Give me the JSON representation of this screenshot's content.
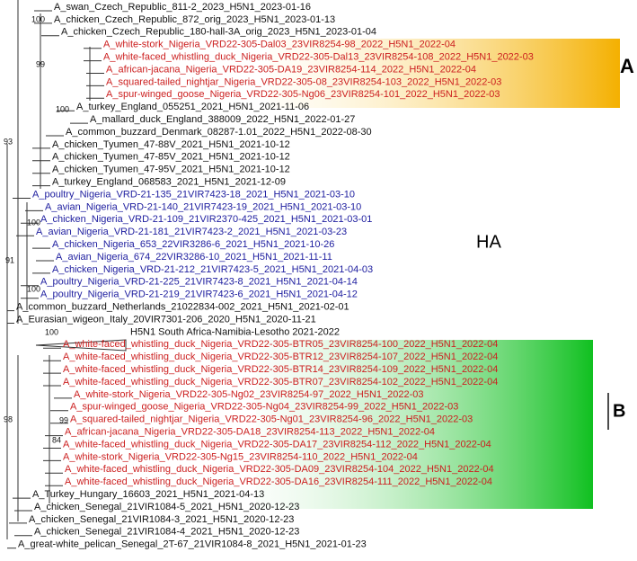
{
  "tree": {
    "leaves": [
      {
        "label": "A_swan_Czech_Republic_811-2_2023_H5N1_2023-01-16",
        "color": "#111111"
      },
      {
        "label": "A_chicken_Czech_Republic_872_orig_2023_H5N1_2023-01-13",
        "color": "#111111"
      },
      {
        "label": "A_chicken_Czech_Republic_180-hall-3A_orig_2023_H5N1_2023-01-04",
        "color": "#111111"
      },
      {
        "label": "A_white-stork_Nigeria_VRD22-305-Dal03_23VIR8254-98_2022_H5N1_2022-04",
        "color": "#cc2020"
      },
      {
        "label": "A_white-faced_whistling_duck_Nigeria_VRD22-305-Dal13_23VIR8254-108_2022_H5N1_2022-03",
        "color": "#cc2020"
      },
      {
        "label": "A_african-jacana_Nigeria_VRD22-305-DA19_23VIR8254-114_2022_H5N1_2022-04",
        "color": "#cc2020"
      },
      {
        "label": "A_squared-tailed_nightjar_Nigeria_VRD22-305-08_23VIR8254-103_2022_H5N1_2022-03",
        "color": "#cc2020"
      },
      {
        "label": "A_spur-winged_goose_Nigeria_VRD22-305-Ng06_23VIR8254-101_2022_H5N1_2022-03",
        "color": "#cc2020"
      },
      {
        "label": "A_turkey_England_055251_2021_H5N1_2021-11-06",
        "color": "#111111"
      },
      {
        "label": "A_mallard_duck_England_388009_2022_H5N1_2022-01-27",
        "color": "#111111"
      },
      {
        "label": "A_common_buzzard_Denmark_08287-1.01_2022_H5N1_2022-08-30",
        "color": "#111111"
      },
      {
        "label": "A_chicken_Tyumen_47-88V_2021_H5N1_2021-10-12",
        "color": "#111111"
      },
      {
        "label": "A_chicken_Tyumen_47-85V_2021_H5N1_2021-10-12",
        "color": "#111111"
      },
      {
        "label": "A_chicken_Tyumen_47-95V_2021_H5N1_2021-10-12",
        "color": "#111111"
      },
      {
        "label": "A_turkey_England_068583_2021_H5N1_2021-12-09",
        "color": "#111111"
      },
      {
        "label": "A_poultry_Nigeria_VRD-21-135_21VIR7423-18_2021_H5N1_2021-03-10",
        "color": "#2020a0"
      },
      {
        "label": "A_avian_Nigeria_VRD-21-140_21VIR7423-19_2021_H5N1_2021-03-10",
        "color": "#2020a0"
      },
      {
        "label": "A_chicken_Nigeria_VRD-21-109_21VIR2370-425_2021_H5N1_2021-03-01",
        "color": "#2020a0"
      },
      {
        "label": "A_avian_Nigeria_VRD-21-181_21VIR7423-2_2021_H5N1_2021-03-23",
        "color": "#2020a0"
      },
      {
        "label": "A_chicken_Nigeria_653_22VIR3286-6_2021_H5N1_2021-10-26",
        "color": "#2020a0"
      },
      {
        "label": "A_avian_Nigeria_674_22VIR3286-10_2021_H5N1_2021-11-11",
        "color": "#2020a0"
      },
      {
        "label": "A_chicken_Nigeria_VRD-21-212_21VIR7423-5_2021_H5N1_2021-04-03",
        "color": "#2020a0"
      },
      {
        "label": "A_poultry_Nigeria_VRD-21-225_21VIR7423-8_2021_H5N1_2021-04-14",
        "color": "#2020a0"
      },
      {
        "label": "A_poultry_Nigeria_VRD-21-219_21VIR7423-6_2021_H5N1_2021-04-12",
        "color": "#2020a0"
      },
      {
        "label": "A_common_buzzard_Netherlands_21022834-002_2021_H5N1_2021-02-01",
        "color": "#111111"
      },
      {
        "label": "A_Eurasian_wigeon_Italy_20VIR7301-206_2020_H5N1_2020-11-21",
        "color": "#111111"
      },
      {
        "label": "H5N1 South Africa-Namibia-Lesotho 2021-2022",
        "color": "#111111"
      },
      {
        "label": "A_white-faced_whistling_duck_Nigeria_VRD22-305-BTR05_23VIR8254-100_2022_H5N1_2022-04",
        "color": "#cc2020"
      },
      {
        "label": "A_white-faced_whistling_duck_Nigeria_VRD22-305-BTR12_23VIR8254-107_2022_H5N1_2022-04",
        "color": "#cc2020"
      },
      {
        "label": "A_white-faced_whistling_duck_Nigeria_VRD22-305-BTR14_23VIR8254-109_2022_H5N1_2022-04",
        "color": "#cc2020"
      },
      {
        "label": "A_white-faced_whistling_duck_Nigeria_VRD22-305-BTR07_23VIR8254-102_2022_H5N1_2022-04",
        "color": "#cc2020"
      },
      {
        "label": "A_white-stork_Nigeria_VRD22-305-Ng02_23VIR8254-97_2022_H5N1_2022-03",
        "color": "#cc2020"
      },
      {
        "label": "A_spur-winged_goose_Nigeria_VRD22-305-Ng04_23VIR8254-99_2022_H5N1_2022-03",
        "color": "#cc2020"
      },
      {
        "label": "A_squared-tailed_nightjar_Nigeria_VRD22-305-Ng01_23VIR8254-96_2022_H5N1_2022-03",
        "color": "#cc2020"
      },
      {
        "label": "A_african-jacana_Nigeria_VRD22-305-DA18_23VIR8254-113_2022_H5N1_2022-04",
        "color": "#cc2020"
      },
      {
        "label": "A_white-faced_whistling_duck_Nigeria_VRD22-305-DA17_23VIR8254-112_2022_H5N1_2022-04",
        "color": "#cc2020"
      },
      {
        "label": "A_white-stork_Nigeria_VRD22-305-Ng15_23VIR8254-110_2022_H5N1_2022-04",
        "color": "#cc2020"
      },
      {
        "label": "A_white-faced_whistling_duck_Nigeria_VRD22-305-DA09_23VIR8254-104_2022_H5N1_2022-04",
        "color": "#cc2020"
      },
      {
        "label": "A_white-faced_whistling_duck_Nigeria_VRD22-305-DA16_23VIR8254-111_2022_H5N1_2022-04",
        "color": "#cc2020"
      },
      {
        "label": "A_Turkey_Hungary_16603_2021_H5N1_2021-04-13",
        "color": "#111111"
      },
      {
        "label": "A_chicken_Senegal_21VIR1084-5_2021_H5N1_2020-12-23",
        "color": "#111111"
      },
      {
        "label": "A_chicken_Senegal_21VIR1084-3_2021_H5N1_2020-12-23",
        "color": "#111111"
      },
      {
        "label": "A_chicken_Senegal_21VIR1084-4_2021_H5N1_2020-12-23",
        "color": "#111111"
      },
      {
        "label": "A_great-white_pelican_Senegal_2T-67_21VIR1084-8_2021_H5N1_2021-01-23",
        "color": "#111111"
      }
    ],
    "bootstrap": [
      "100",
      "99",
      "93",
      "100",
      "100",
      "91",
      "100",
      "100",
      "98",
      "99",
      "84"
    ],
    "clade_labels": {
      "a": "A",
      "ha": "HA",
      "b": "B"
    }
  }
}
